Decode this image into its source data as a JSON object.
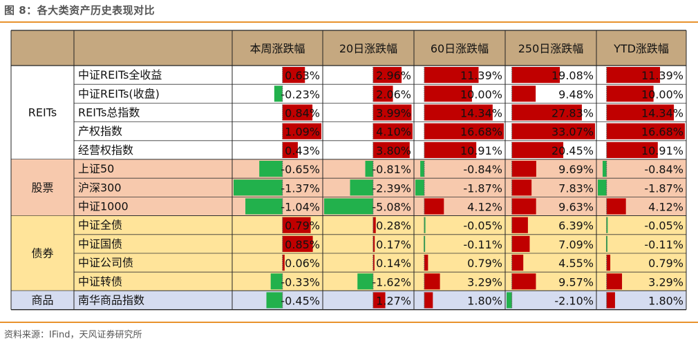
{
  "figure": {
    "title": "图 8：各大类资产历史表现对比",
    "source": "资料来源：IFind，天风证券研究所"
  },
  "colors": {
    "header_bg": "#c5a880",
    "reits_bg": "#ffffff",
    "stock_bg": "#f7c9ad",
    "bond_bg": "#ffe49a",
    "commodity_bg": "#d5dcf0",
    "positive_bar": "#c00000",
    "negative_bar": "#22b14c",
    "rule": "#e8922c"
  },
  "chart_data": {
    "type": "table",
    "title": "图 8：各大类资产历史表现对比",
    "columns": [
      "本周涨跌幅",
      "20日涨跌幅",
      "60日涨跌幅",
      "250日涨跌幅",
      "YTD涨跌幅"
    ],
    "groups": [
      {
        "name": "REITs",
        "rows": [
          {
            "name": "中证REITs全收益",
            "values": [
              0.63,
              2.96,
              11.39,
              19.08,
              11.39
            ]
          },
          {
            "name": "中证REITs(收盘)",
            "values": [
              -0.23,
              2.06,
              10.0,
              9.48,
              10.0
            ]
          },
          {
            "name": "REITs总指数",
            "values": [
              0.84,
              3.99,
              14.34,
              27.83,
              14.34
            ]
          },
          {
            "name": "产权指数",
            "values": [
              1.09,
              4.1,
              16.68,
              33.07,
              16.68
            ]
          },
          {
            "name": "经营权指数",
            "values": [
              0.43,
              3.8,
              10.91,
              20.45,
              10.91
            ]
          }
        ]
      },
      {
        "name": "股票",
        "rows": [
          {
            "name": "上证50",
            "values": [
              -0.65,
              -0.81,
              -0.84,
              9.69,
              -0.84
            ]
          },
          {
            "name": "沪深300",
            "values": [
              -1.37,
              -2.39,
              -1.87,
              7.83,
              -1.87
            ]
          },
          {
            "name": "中证1000",
            "values": [
              -1.04,
              -5.08,
              4.12,
              9.63,
              4.12
            ]
          }
        ]
      },
      {
        "name": "债券",
        "rows": [
          {
            "name": "中证全债",
            "values": [
              0.79,
              0.28,
              -0.05,
              6.39,
              -0.05
            ]
          },
          {
            "name": "中证国债",
            "values": [
              0.85,
              0.17,
              -0.11,
              7.09,
              -0.11
            ]
          },
          {
            "name": "中证公司债",
            "values": [
              0.06,
              0.14,
              0.79,
              4.55,
              0.79
            ]
          },
          {
            "name": "中证转债",
            "values": [
              -0.33,
              -1.62,
              3.29,
              9.57,
              3.29
            ]
          }
        ]
      },
      {
        "name": "商品",
        "rows": [
          {
            "name": "南华商品指数",
            "values": [
              -0.45,
              1.27,
              1.8,
              -2.1,
              1.8
            ]
          }
        ]
      }
    ],
    "unit": "%",
    "bar_axis_min": [
      -1.37,
      -5.08,
      -1.87,
      -2.1,
      -1.87
    ],
    "bar_axis_max": [
      1.09,
      4.1,
      16.68,
      33.07,
      16.68
    ]
  }
}
